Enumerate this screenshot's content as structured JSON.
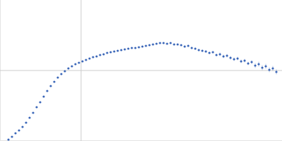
{
  "chart_data": {
    "type": "scatter",
    "color": "#3a66b8",
    "marker": "circle",
    "grid": true,
    "tick_labels": false,
    "xlim": [
      0,
      4
    ],
    "xticks": [
      1.15
    ],
    "ylim": [
      0,
      2
    ],
    "yticks": [
      1
    ],
    "x": [
      0.12,
      0.17,
      0.22,
      0.27,
      0.32,
      0.37,
      0.42,
      0.47,
      0.52,
      0.57,
      0.62,
      0.67,
      0.72,
      0.77,
      0.82,
      0.87,
      0.92,
      0.97,
      1.02,
      1.07,
      1.12,
      1.17,
      1.22,
      1.27,
      1.32,
      1.37,
      1.42,
      1.47,
      1.52,
      1.57,
      1.62,
      1.67,
      1.72,
      1.77,
      1.82,
      1.87,
      1.92,
      1.97,
      2.02,
      2.07,
      2.12,
      2.17,
      2.22,
      2.27,
      2.32,
      2.37,
      2.42,
      2.47,
      2.52,
      2.57,
      2.62,
      2.67,
      2.72,
      2.77,
      2.82,
      2.87,
      2.92,
      2.97,
      3.02,
      3.07,
      3.12,
      3.17,
      3.22,
      3.27,
      3.32,
      3.37,
      3.42,
      3.47,
      3.52,
      3.57,
      3.62,
      3.67,
      3.72,
      3.77,
      3.82,
      3.87,
      3.92
    ],
    "values": [
      0.02,
      0.06,
      0.11,
      0.15,
      0.2,
      0.26,
      0.33,
      0.4,
      0.48,
      0.55,
      0.63,
      0.71,
      0.78,
      0.84,
      0.9,
      0.95,
      0.99,
      1.03,
      1.06,
      1.09,
      1.11,
      1.13,
      1.15,
      1.17,
      1.19,
      1.2,
      1.22,
      1.23,
      1.25,
      1.26,
      1.27,
      1.28,
      1.29,
      1.3,
      1.31,
      1.32,
      1.32,
      1.33,
      1.34,
      1.35,
      1.36,
      1.37,
      1.38,
      1.39,
      1.39,
      1.38,
      1.39,
      1.37,
      1.37,
      1.36,
      1.34,
      1.35,
      1.32,
      1.31,
      1.29,
      1.28,
      1.27,
      1.25,
      1.26,
      1.22,
      1.23,
      1.2,
      1.21,
      1.18,
      1.16,
      1.17,
      1.13,
      1.14,
      1.1,
      1.12,
      1.07,
      1.09,
      1.04,
      1.06,
      1.01,
      1.03,
      0.98
    ],
    "errors": [
      0.005,
      0.005,
      0.005,
      0.005,
      0.005,
      0.005,
      0.005,
      0.005,
      0.005,
      0.005,
      0.005,
      0.005,
      0.005,
      0.005,
      0.005,
      0.005,
      0.005,
      0.005,
      0.005,
      0.005,
      0.005,
      0.005,
      0.005,
      0.005,
      0.005,
      0.005,
      0.005,
      0.005,
      0.005,
      0.005,
      0.005,
      0.005,
      0.005,
      0.005,
      0.005,
      0.005,
      0.005,
      0.005,
      0.005,
      0.005,
      0.01,
      0.01,
      0.01,
      0.01,
      0.01,
      0.01,
      0.01,
      0.01,
      0.01,
      0.01,
      0.015,
      0.015,
      0.015,
      0.015,
      0.015,
      0.015,
      0.015,
      0.015,
      0.015,
      0.015,
      0.025,
      0.025,
      0.025,
      0.025,
      0.025,
      0.025,
      0.025,
      0.025,
      0.025,
      0.025,
      0.035,
      0.035,
      0.035,
      0.035,
      0.035,
      0.035,
      0.035
    ]
  }
}
